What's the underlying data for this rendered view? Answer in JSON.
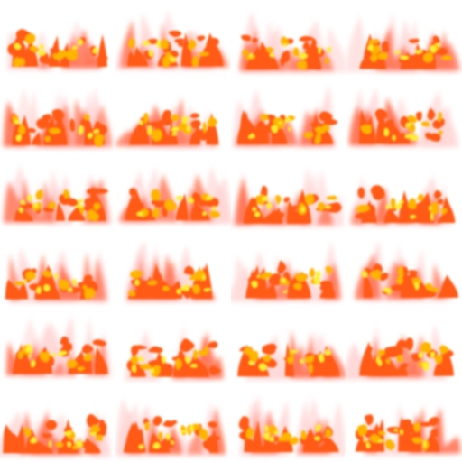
{
  "sprite_sheet": {
    "columns": 4,
    "rows": 6,
    "frame_count": 24,
    "background_color": "#ffffff",
    "flame_colors": {
      "halo": "#ffd6d6",
      "outer": "#ff7a5c",
      "mid": "#ff5a14",
      "inner": "#ffb400",
      "core": "#ffee30"
    }
  }
}
